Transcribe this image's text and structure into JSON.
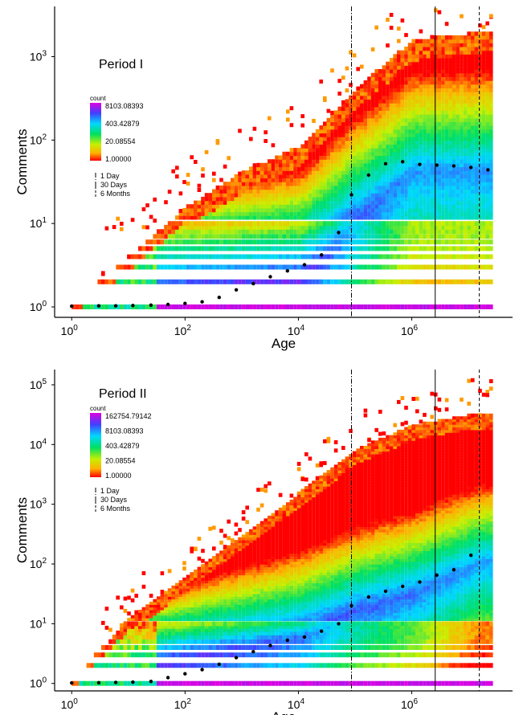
{
  "chart_data": [
    {
      "type": "heatmap",
      "title": "Period I",
      "xlabel": "Age",
      "ylabel": "Comments",
      "x_scale": "log10",
      "y_scale": "log10",
      "xlim": [
        0.5,
        60000000
      ],
      "ylim": [
        0.75,
        4000
      ],
      "x_ticks": [
        {
          "v": 1,
          "exp": "0"
        },
        {
          "v": 100,
          "exp": "2"
        },
        {
          "v": 10000,
          "exp": "4"
        },
        {
          "v": 1000000,
          "exp": "6"
        }
      ],
      "y_ticks": [
        {
          "v": 1,
          "exp": "0"
        },
        {
          "v": 10,
          "exp": "1"
        },
        {
          "v": 100,
          "exp": "2"
        },
        {
          "v": 1000,
          "exp": "3"
        }
      ],
      "tick_base": "10",
      "grid": false,
      "legend": {
        "title": "count",
        "placement": "left",
        "labels": [
          "8103.08393",
          "403.42879",
          "20.08554",
          "1.00000"
        ],
        "colors": [
          "#e000e0",
          "#4040ff",
          "#00d8ff",
          "#00e060",
          "#c8f000",
          "#ffb000",
          "#ff0000"
        ]
      },
      "line_legend": {
        "labels": [
          "1 Day",
          "30 Days",
          "6 Months"
        ]
      },
      "vertical_lines": [
        {
          "label": "1 Day",
          "x": 86400,
          "style": "dotdash"
        },
        {
          "label": "30 Days",
          "x": 2592000,
          "style": "solid"
        },
        {
          "label": "6 Months",
          "x": 15552000,
          "style": "dashed"
        }
      ],
      "mean_points": {
        "x": [
          1,
          3,
          6,
          12,
          25,
          50,
          100,
          200,
          400,
          800,
          1600,
          3200,
          6400,
          12800,
          25600,
          51200,
          86400,
          172800,
          345600,
          691200,
          1382400,
          2764800,
          5529600,
          11059200,
          22118400
        ],
        "y": [
          1.02,
          1.03,
          1.03,
          1.04,
          1.05,
          1.07,
          1.1,
          1.15,
          1.3,
          1.6,
          1.9,
          2.3,
          2.7,
          3.2,
          4.2,
          7.8,
          22,
          38,
          52,
          55,
          51,
          50,
          49,
          47,
          44
        ]
      },
      "envelope": {
        "x": [
          1,
          10,
          100,
          1000,
          10000,
          100000,
          1000000,
          10000000,
          30000000
        ],
        "max_y": [
          1.1,
          4,
          15,
          40,
          80,
          400,
          1500,
          1800,
          2000
        ]
      },
      "mode_line": {
        "x": [
          1,
          10000,
          86400,
          1000000,
          30000000
        ],
        "y": [
          1,
          2,
          10,
          40,
          40
        ]
      }
    },
    {
      "type": "heatmap",
      "title": "Period II",
      "xlabel": "Age",
      "ylabel": "Comments",
      "x_scale": "log10",
      "y_scale": "log10",
      "xlim": [
        0.5,
        60000000
      ],
      "ylim": [
        0.75,
        180000
      ],
      "x_ticks": [
        {
          "v": 1,
          "exp": "0"
        },
        {
          "v": 100,
          "exp": "2"
        },
        {
          "v": 10000,
          "exp": "4"
        },
        {
          "v": 1000000,
          "exp": "6"
        }
      ],
      "y_ticks": [
        {
          "v": 1,
          "exp": "0"
        },
        {
          "v": 10,
          "exp": "1"
        },
        {
          "v": 100,
          "exp": "2"
        },
        {
          "v": 1000,
          "exp": "3"
        },
        {
          "v": 10000,
          "exp": "4"
        },
        {
          "v": 100000,
          "exp": "5"
        }
      ],
      "tick_base": "10",
      "grid": false,
      "legend": {
        "title": "count",
        "placement": "left",
        "labels": [
          "162754.79142",
          "8103.08393",
          "403.42879",
          "20.08554",
          "1.00000"
        ],
        "colors": [
          "#e000e0",
          "#4040ff",
          "#00d8ff",
          "#00e060",
          "#c8f000",
          "#ffb000",
          "#ff0000"
        ]
      },
      "line_legend": {
        "labels": [
          "1 Day",
          "30 Days",
          "6 Months"
        ]
      },
      "vertical_lines": [
        {
          "label": "1 Day",
          "x": 86400,
          "style": "dotdash"
        },
        {
          "label": "30 Days",
          "x": 2592000,
          "style": "solid"
        },
        {
          "label": "6 Months",
          "x": 15552000,
          "style": "dashed"
        }
      ],
      "mean_points": {
        "x": [
          1,
          3,
          6,
          12,
          25,
          50,
          100,
          200,
          400,
          800,
          1600,
          3200,
          6400,
          12800,
          25600,
          51200,
          86400,
          172800,
          345600,
          691200,
          1382400,
          2764800,
          5529600,
          11059200
        ],
        "y": [
          1.02,
          1.03,
          1.04,
          1.05,
          1.08,
          1.25,
          1.45,
          1.7,
          2.1,
          2.7,
          3.4,
          4.3,
          5.3,
          6.0,
          7.5,
          10,
          20,
          28,
          35,
          42,
          50,
          65,
          80,
          140
        ]
      },
      "envelope": {
        "x": [
          1,
          10,
          100,
          1000,
          10000,
          100000,
          1000000,
          10000000,
          15552000
        ],
        "max_y": [
          1.2,
          12,
          60,
          300,
          1500,
          8000,
          20000,
          30000,
          30000
        ]
      },
      "mode_line": {
        "x": [
          1,
          10000,
          86400,
          1000000,
          15552000
        ],
        "y": [
          1,
          6,
          15,
          30,
          100
        ]
      }
    }
  ]
}
